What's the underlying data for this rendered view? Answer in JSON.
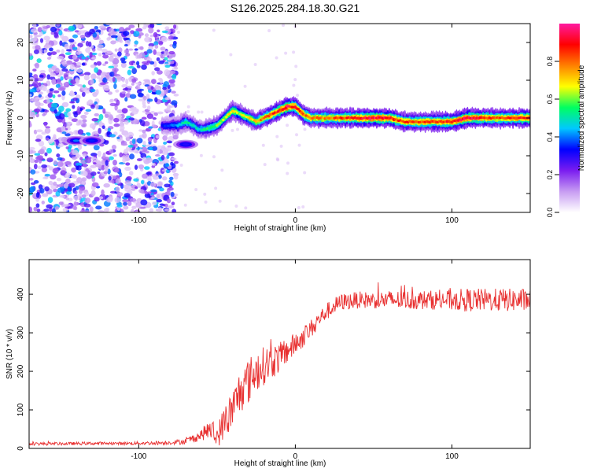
{
  "figure_title": "S126.2025.284.18.30.G21",
  "chart_data": [
    {
      "type": "heatmap",
      "title": "S126.2025.284.18.30.G21",
      "xlabel": "Height of straight line (km)",
      "ylabel": "Frequency (Hz)",
      "xlim": [
        -170,
        150
      ],
      "ylim": [
        -25,
        25
      ],
      "xticks": [
        -100,
        0,
        100
      ],
      "yticks": [
        -20,
        -10,
        0,
        10,
        20
      ],
      "colorbar": {
        "label": "Normalized spectral amplitude",
        "range": [
          0.0,
          1.0
        ],
        "ticks": [
          "0.0",
          "0.2",
          "0.4",
          "0.6",
          "0.8"
        ],
        "tick_values": [
          0.0,
          0.2,
          0.4,
          0.6,
          0.8
        ],
        "colors": [
          "#ffffff",
          "#c79cf2",
          "#7a1cf0",
          "#0000ff",
          "#00c8ff",
          "#00ff60",
          "#ffff00",
          "#ff8000",
          "#ff0000",
          "#ff1aa0"
        ]
      },
      "noise_region_x": [
        -170,
        -82
      ],
      "ridge": {
        "description": "dominant frequency track",
        "x": [
          -85,
          -75,
          -70,
          -65,
          -62,
          -58,
          -50,
          -45,
          -40,
          -35,
          -30,
          -25,
          -20,
          -15,
          -10,
          -5,
          0,
          5,
          10,
          20,
          30,
          40,
          50,
          60,
          70,
          80,
          90,
          100,
          110,
          120,
          130,
          140,
          150
        ],
        "freq": [
          -2,
          -2,
          -1,
          -2,
          -3,
          -3,
          -2,
          0,
          2,
          1,
          0,
          -1,
          0,
          1,
          2,
          3,
          3,
          1,
          0,
          0,
          0,
          0,
          0,
          0,
          -1,
          -1,
          -1,
          -1,
          0,
          0,
          0,
          0,
          0
        ],
        "amplitude": [
          0.35,
          0.45,
          0.55,
          0.5,
          0.5,
          0.55,
          0.6,
          0.65,
          0.7,
          0.65,
          0.7,
          0.75,
          0.8,
          0.85,
          0.9,
          0.95,
          0.9,
          0.85,
          0.8,
          0.8,
          0.85,
          0.9,
          0.95,
          0.9,
          0.85,
          0.85,
          0.85,
          0.9,
          0.95,
          0.9,
          0.85,
          0.9,
          0.9
        ]
      },
      "secondary_features": [
        {
          "x": -140,
          "freq": -6,
          "amplitude": 0.4
        },
        {
          "x": -130,
          "freq": -6,
          "amplitude": 0.35
        },
        {
          "x": -70,
          "freq": -7,
          "amplitude": 0.3
        }
      ]
    },
    {
      "type": "line",
      "xlabel": "Height of straight line (km)",
      "ylabel": "SNR (10 * v/v)",
      "xlim": [
        -170,
        150
      ],
      "ylim": [
        0,
        490
      ],
      "xticks": [
        -100,
        0,
        100
      ],
      "yticks": [
        0,
        100,
        200,
        300,
        400
      ],
      "series": [
        {
          "name": "SNR",
          "color": "#e83030",
          "x": [
            -170,
            -150,
            -130,
            -110,
            -90,
            -80,
            -70,
            -60,
            -55,
            -50,
            -45,
            -40,
            -35,
            -30,
            -25,
            -20,
            -15,
            -10,
            -5,
            0,
            5,
            10,
            15,
            20,
            25,
            30,
            40,
            50,
            60,
            70,
            80,
            90,
            100,
            110,
            120,
            130,
            140,
            150
          ],
          "values": [
            12,
            12,
            13,
            13,
            14,
            15,
            18,
            35,
            50,
            30,
            70,
            100,
            150,
            175,
            200,
            215,
            225,
            235,
            255,
            270,
            290,
            310,
            335,
            355,
            370,
            380,
            385,
            385,
            385,
            385,
            385,
            385,
            385,
            385,
            385,
            385,
            385,
            385
          ],
          "noise_amplitude": [
            4,
            4,
            4,
            4,
            5,
            5,
            8,
            15,
            25,
            30,
            45,
            55,
            60,
            60,
            55,
            50,
            45,
            40,
            35,
            30,
            28,
            25,
            22,
            22,
            22,
            22,
            22,
            22,
            25,
            25,
            25,
            25,
            28,
            30,
            30,
            30,
            30,
            30
          ]
        }
      ]
    }
  ]
}
